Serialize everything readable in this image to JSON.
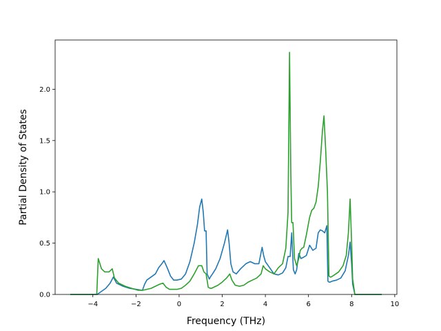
{
  "chart_data": {
    "type": "line",
    "title": "",
    "xlabel": "Frequency (THz)",
    "ylabel": "Partial Density of States",
    "xlim": [
      -5.75,
      10.1
    ],
    "ylim": [
      0.0,
      2.48
    ],
    "xticks": [
      -4,
      -2,
      0,
      2,
      4,
      6,
      8,
      10
    ],
    "xtick_labels": [
      "−4",
      "−2",
      "0",
      "2",
      "4",
      "6",
      "8",
      "10"
    ],
    "yticks": [
      0.0,
      0.5,
      1.0,
      1.5,
      2.0
    ],
    "ytick_labels": [
      "0.0",
      "0.5",
      "1.0",
      "1.5",
      "2.0"
    ],
    "grid": false,
    "legend": false,
    "series": [
      {
        "color": "#1f77b4",
        "x": [
          -5.05,
          -3.8,
          -3.6,
          -3.4,
          -3.2,
          -3.05,
          -2.9,
          -2.6,
          -2.3,
          -2.0,
          -1.7,
          -1.6,
          -1.5,
          -1.3,
          -1.1,
          -0.95,
          -0.8,
          -0.7,
          -0.55,
          -0.4,
          -0.25,
          -0.1,
          0.1,
          0.3,
          0.5,
          0.7,
          0.85,
          0.95,
          1.05,
          1.12,
          1.18,
          1.25,
          1.3,
          1.4,
          1.45,
          1.55,
          1.7,
          1.9,
          2.1,
          2.25,
          2.32,
          2.4,
          2.5,
          2.65,
          2.85,
          3.1,
          3.3,
          3.5,
          3.7,
          3.85,
          3.92,
          4.0,
          4.2,
          4.4,
          4.6,
          4.8,
          4.95,
          5.05,
          5.15,
          5.22,
          5.3,
          5.38,
          5.45,
          5.55,
          5.65,
          5.75,
          5.9,
          6.05,
          6.2,
          6.35,
          6.45,
          6.55,
          6.65,
          6.75,
          6.85,
          6.9,
          6.95,
          7.0,
          7.1,
          7.3,
          7.5,
          7.7,
          7.85,
          7.93,
          8.0,
          8.05,
          8.15,
          8.3,
          8.6,
          9.0,
          9.4
        ],
        "values": [
          0.0,
          0.0,
          0.03,
          0.06,
          0.11,
          0.17,
          0.11,
          0.08,
          0.06,
          0.05,
          0.04,
          0.1,
          0.14,
          0.17,
          0.2,
          0.26,
          0.3,
          0.33,
          0.26,
          0.18,
          0.14,
          0.14,
          0.15,
          0.2,
          0.32,
          0.5,
          0.68,
          0.85,
          0.93,
          0.8,
          0.62,
          0.62,
          0.2,
          0.15,
          0.17,
          0.2,
          0.25,
          0.35,
          0.5,
          0.63,
          0.5,
          0.3,
          0.22,
          0.2,
          0.25,
          0.3,
          0.32,
          0.3,
          0.3,
          0.46,
          0.38,
          0.32,
          0.26,
          0.2,
          0.19,
          0.21,
          0.26,
          0.37,
          0.37,
          0.6,
          0.24,
          0.2,
          0.24,
          0.4,
          0.35,
          0.36,
          0.38,
          0.48,
          0.43,
          0.45,
          0.6,
          0.63,
          0.62,
          0.6,
          0.67,
          0.13,
          0.12,
          0.12,
          0.13,
          0.14,
          0.16,
          0.23,
          0.38,
          0.51,
          0.3,
          0.1,
          0.0,
          0.0,
          0.0,
          0.0,
          0.0
        ]
      },
      {
        "color": "#2ca02c",
        "x": [
          -5.05,
          -3.82,
          -3.75,
          -3.6,
          -3.45,
          -3.25,
          -3.1,
          -3.0,
          -2.8,
          -2.5,
          -2.2,
          -1.9,
          -1.7,
          -1.5,
          -1.3,
          -1.1,
          -0.9,
          -0.75,
          -0.6,
          -0.45,
          -0.3,
          -0.1,
          0.1,
          0.3,
          0.5,
          0.7,
          0.9,
          1.05,
          1.15,
          1.25,
          1.35,
          1.45,
          1.5,
          1.6,
          1.8,
          2.0,
          2.2,
          2.35,
          2.45,
          2.6,
          2.8,
          3.0,
          3.2,
          3.4,
          3.6,
          3.8,
          3.9,
          4.0,
          4.2,
          4.4,
          4.6,
          4.8,
          4.95,
          5.05,
          5.12,
          5.18,
          5.22,
          5.28,
          5.35,
          5.45,
          5.55,
          5.62,
          5.7,
          5.78,
          5.9,
          6.05,
          6.15,
          6.25,
          6.35,
          6.45,
          6.55,
          6.65,
          6.72,
          6.8,
          6.88,
          6.95,
          7.0,
          7.05,
          7.2,
          7.4,
          7.6,
          7.75,
          7.85,
          7.93,
          8.0,
          8.05,
          8.15,
          8.3,
          8.6,
          9.0,
          9.4
        ],
        "values": [
          0.0,
          0.0,
          0.35,
          0.25,
          0.22,
          0.22,
          0.25,
          0.16,
          0.11,
          0.08,
          0.06,
          0.04,
          0.04,
          0.05,
          0.06,
          0.08,
          0.1,
          0.11,
          0.07,
          0.05,
          0.05,
          0.05,
          0.06,
          0.09,
          0.13,
          0.2,
          0.28,
          0.28,
          0.22,
          0.2,
          0.07,
          0.06,
          0.06,
          0.07,
          0.09,
          0.12,
          0.16,
          0.2,
          0.14,
          0.09,
          0.08,
          0.09,
          0.12,
          0.14,
          0.16,
          0.2,
          0.28,
          0.25,
          0.22,
          0.2,
          0.26,
          0.3,
          0.45,
          0.8,
          2.36,
          1.2,
          0.7,
          0.7,
          0.35,
          0.28,
          0.35,
          0.43,
          0.45,
          0.46,
          0.58,
          0.75,
          0.82,
          0.84,
          0.9,
          1.05,
          1.3,
          1.6,
          1.74,
          1.4,
          1.0,
          0.18,
          0.17,
          0.17,
          0.19,
          0.22,
          0.28,
          0.38,
          0.6,
          0.93,
          0.5,
          0.15,
          0.0,
          0.0,
          0.0,
          0.0,
          0.0
        ]
      }
    ]
  }
}
